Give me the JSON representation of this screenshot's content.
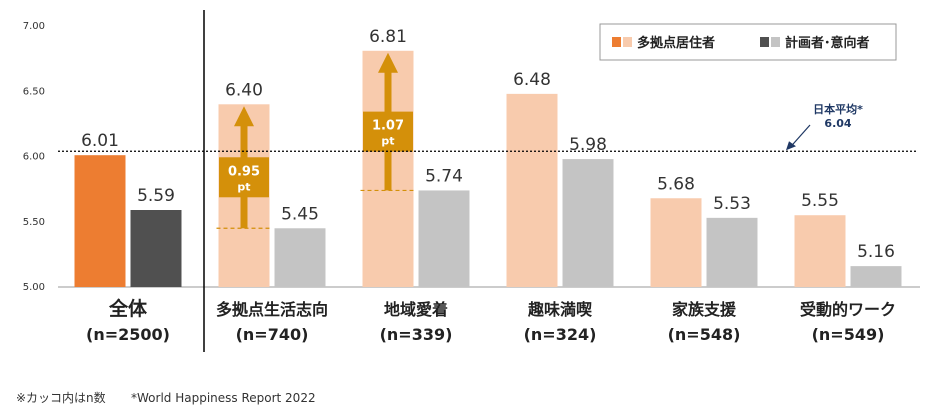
{
  "chart_data": {
    "type": "bar",
    "ylim": [
      5.0,
      7.0
    ],
    "yticks": [
      "5.00",
      "5.50",
      "6.00",
      "6.50",
      "7.00"
    ],
    "categories": [
      {
        "name": "全体",
        "n": "(n=2500)"
      },
      {
        "name": "多拠点生活志向",
        "n": "(n=740)"
      },
      {
        "name": "地域愛着",
        "n": "(n=339)"
      },
      {
        "name": "趣味満喫",
        "n": "(n=324)"
      },
      {
        "name": "家族支援",
        "n": "(n=548)"
      },
      {
        "name": "受動的ワーク",
        "n": "(n=549)"
      }
    ],
    "series": [
      {
        "name": "多拠点居住者",
        "values": [
          6.01,
          6.4,
          6.81,
          6.48,
          5.68,
          5.55
        ],
        "labels": [
          "6.01",
          "6.40",
          "6.81",
          "6.48",
          "5.68",
          "5.55"
        ]
      },
      {
        "name": "計画者･意向者",
        "values": [
          5.59,
          5.45,
          5.74,
          5.98,
          5.53,
          5.16
        ],
        "labels": [
          "5.59",
          "5.45",
          "5.74",
          "5.98",
          "5.53",
          "5.16"
        ]
      }
    ],
    "colors": {
      "total_s1": "#ed7d31",
      "total_s2": "#505050",
      "s1": "#f8cbad",
      "s2": "#c4c4c4",
      "arrow": "#d4900a"
    },
    "reference": {
      "value": 6.04,
      "label": "日本平均*",
      "value_label": "6.04"
    },
    "diffs": [
      {
        "category_index": 1,
        "label": "0.95",
        "unit": "pt"
      },
      {
        "category_index": 2,
        "label": "1.07",
        "unit": "pt"
      }
    ],
    "legend_position": "top-right",
    "grid": false
  },
  "footnotes": {
    "left": "※カッコ内はn数",
    "right": "*World Happiness Report 2022"
  }
}
